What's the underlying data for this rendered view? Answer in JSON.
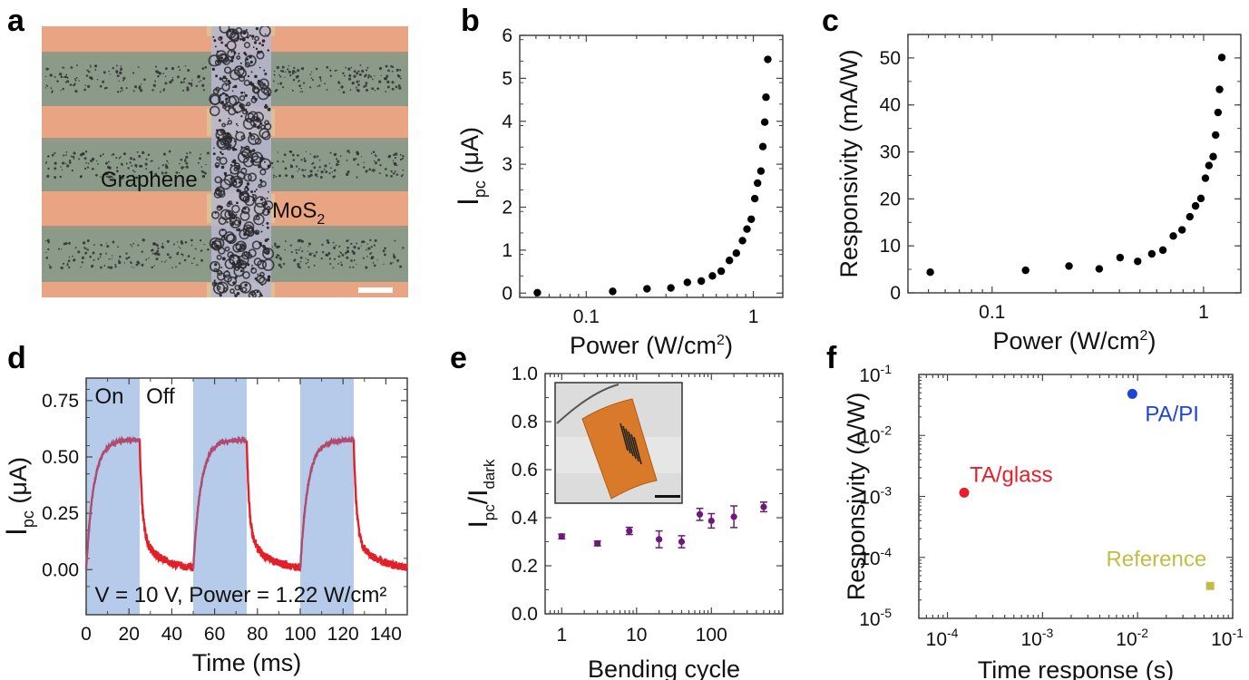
{
  "figure": {
    "panel_labels": [
      "a",
      "b",
      "c",
      "d",
      "e",
      "f"
    ]
  },
  "panel_a": {
    "type": "micrograph",
    "labels": {
      "graphene": "Graphene",
      "mos2_main": "MoS",
      "mos2_sub": "2"
    },
    "colors": {
      "electrode": "#e9a583",
      "graphene": "#8b9a89",
      "mos2": "#b7b6cf",
      "particles": "#2a2a2e",
      "scalebar": "#ffffff"
    }
  },
  "chart_data": [
    {
      "id": "b",
      "type": "scatter",
      "title": "",
      "xlabel": "Power (W/cm",
      "xlabel_sup": "2",
      "xlabel_end": ")",
      "ylabel_main": "I",
      "ylabel_sub": "pc",
      "ylabel_end": " (μA)",
      "xscale": "log",
      "xlim": [
        0.04,
        1.5
      ],
      "ylim": [
        -0.1,
        6
      ],
      "xticks": [
        {
          "v": 0.1,
          "label": "0.1"
        },
        {
          "v": 1,
          "label": "1"
        }
      ],
      "yticks": [
        {
          "v": 0,
          "label": "0"
        },
        {
          "v": 1,
          "label": "1"
        },
        {
          "v": 2,
          "label": "2"
        },
        {
          "v": 3,
          "label": "3"
        },
        {
          "v": 4,
          "label": "4"
        },
        {
          "v": 5,
          "label": "5"
        },
        {
          "v": 6,
          "label": "6"
        }
      ],
      "color": "#000000",
      "x": [
        0.051,
        0.144,
        0.231,
        0.321,
        0.403,
        0.488,
        0.569,
        0.642,
        0.719,
        0.791,
        0.861,
        0.916,
        0.971,
        1.02,
        1.06,
        1.11,
        1.14,
        1.17,
        1.19,
        1.22
      ],
      "y": [
        0.01,
        0.04,
        0.1,
        0.12,
        0.25,
        0.28,
        0.4,
        0.51,
        0.76,
        0.93,
        1.22,
        1.49,
        1.72,
        2.2,
        2.56,
        2.84,
        3.41,
        3.98,
        4.56,
        5.44
      ]
    },
    {
      "id": "c",
      "type": "scatter",
      "title": "",
      "xlabel": "Power (W/cm",
      "xlabel_sup": "2",
      "xlabel_end": ")",
      "ylabel": "Responsivity (mA/W)",
      "xscale": "log",
      "xlim": [
        0.04,
        1.5
      ],
      "ylim": [
        0,
        55
      ],
      "xticks": [
        {
          "v": 0.1,
          "label": "0.1"
        },
        {
          "v": 1,
          "label": "1"
        }
      ],
      "yticks": [
        {
          "v": 0,
          "label": "0"
        },
        {
          "v": 10,
          "label": "10"
        },
        {
          "v": 20,
          "label": "20"
        },
        {
          "v": 30,
          "label": "30"
        },
        {
          "v": 40,
          "label": "40"
        },
        {
          "v": 50,
          "label": "50"
        }
      ],
      "color": "#000000",
      "x": [
        0.051,
        0.144,
        0.231,
        0.321,
        0.403,
        0.488,
        0.569,
        0.642,
        0.719,
        0.791,
        0.861,
        0.916,
        0.971,
        1.02,
        1.06,
        1.11,
        1.14,
        1.17,
        1.19,
        1.22
      ],
      "y": [
        4.4,
        4.8,
        5.7,
        5.1,
        7.5,
        6.7,
        8.3,
        9.1,
        12.1,
        13.4,
        16.2,
        18.5,
        20.1,
        24.4,
        27.1,
        29.0,
        33.6,
        38.4,
        43.3,
        50.1
      ]
    },
    {
      "id": "d",
      "type": "line",
      "title": "",
      "xlabel": "Time (ms)",
      "ylabel_main": "I",
      "ylabel_sub": "pc",
      "ylabel_end": " (μA)",
      "xlim": [
        0,
        150
      ],
      "ylim": [
        -0.2,
        0.85
      ],
      "xticks": [
        {
          "v": 0,
          "label": "0"
        },
        {
          "v": 20,
          "label": "20"
        },
        {
          "v": 40,
          "label": "40"
        },
        {
          "v": 60,
          "label": "60"
        },
        {
          "v": 80,
          "label": "80"
        },
        {
          "v": 100,
          "label": "100"
        },
        {
          "v": 120,
          "label": "120"
        },
        {
          "v": 140,
          "label": "140"
        }
      ],
      "yticks": [
        {
          "v": 0,
          "label": "0.00"
        },
        {
          "v": 0.25,
          "label": "0.25"
        },
        {
          "v": 0.5,
          "label": "0.50"
        },
        {
          "v": 0.75,
          "label": "0.75"
        }
      ],
      "on_intervals": [
        [
          0,
          25
        ],
        [
          50,
          75
        ],
        [
          100,
          125
        ]
      ],
      "on_label": "On",
      "off_label": "Off",
      "annotation": "V = 10 V, Power = 1.22 W/cm²",
      "shade_color": "#b5cbe9",
      "trace_color": "#e3202a",
      "trace_on_color": "#b04a6e",
      "model": {
        "plateau": 0.575,
        "rise_tau_ms": 3.5,
        "decay_fast_amp": 0.42,
        "decay_fast_tau_ms": 1.2,
        "decay_slow_amp": 0.155,
        "decay_slow_tau_ms": 9
      },
      "series": [
        {
          "name": "I_pc",
          "x_sample": [
            0,
            2,
            5,
            10,
            15,
            20,
            25,
            26,
            30,
            35,
            40,
            45,
            50,
            52,
            55,
            60,
            65,
            70,
            75,
            76,
            80,
            85,
            90,
            95,
            100,
            102,
            105,
            110,
            115,
            120,
            125,
            126,
            130,
            135,
            140,
            145,
            150
          ],
          "y_sample": [
            0.0,
            0.25,
            0.44,
            0.53,
            0.56,
            0.57,
            0.575,
            0.28,
            0.14,
            0.09,
            0.05,
            0.01,
            0.01,
            0.25,
            0.44,
            0.53,
            0.56,
            0.57,
            0.575,
            0.28,
            0.14,
            0.08,
            0.04,
            0.01,
            0.01,
            0.25,
            0.44,
            0.53,
            0.56,
            0.575,
            0.575,
            0.28,
            0.14,
            0.08,
            0.04,
            0.02,
            -0.01
          ]
        }
      ]
    },
    {
      "id": "e",
      "type": "scatter",
      "title": "",
      "xlabel": "Bending cycle",
      "ylabel_main": "I",
      "ylabel_sub": "pc",
      "ylabel_mid": "/I",
      "ylabel_sub2": "dark",
      "xscale": "log",
      "xlim": [
        0.6,
        900
      ],
      "ylim": [
        0,
        1.0
      ],
      "xticks": [
        {
          "v": 1,
          "label": "1"
        },
        {
          "v": 10,
          "label": "10"
        },
        {
          "v": 100,
          "label": "100"
        }
      ],
      "yticks": [
        {
          "v": 0,
          "label": "0.0"
        },
        {
          "v": 0.2,
          "label": "0.2"
        },
        {
          "v": 0.4,
          "label": "0.4"
        },
        {
          "v": 0.6,
          "label": "0.6"
        },
        {
          "v": 0.8,
          "label": "0.8"
        },
        {
          "v": 1.0,
          "label": "1.0"
        }
      ],
      "color": "#6b1a78",
      "x": [
        1,
        3,
        8,
        20,
        40,
        70,
        100,
        200,
        500
      ],
      "y": [
        0.322,
        0.293,
        0.345,
        0.31,
        0.3,
        0.414,
        0.387,
        0.404,
        0.445
      ],
      "yerr": [
        0.01,
        0.01,
        0.015,
        0.035,
        0.025,
        0.025,
        0.03,
        0.045,
        0.02
      ],
      "inset": "photo of bent flexible photodetector on glass tube"
    },
    {
      "id": "f",
      "type": "scatter",
      "title": "",
      "xlabel": "Time response (s)",
      "ylabel": "Responsivity (A/W)",
      "xscale": "log",
      "yscale": "log",
      "xlim": [
        5e-05,
        0.1
      ],
      "ylim": [
        1e-05,
        0.1
      ],
      "xticks": [
        {
          "v": 0.0001,
          "base": "10",
          "exp": "-4"
        },
        {
          "v": 0.001,
          "base": "10",
          "exp": "-3"
        },
        {
          "v": 0.01,
          "base": "10",
          "exp": "-2"
        },
        {
          "v": 0.1,
          "base": "10",
          "exp": "-1"
        }
      ],
      "yticks": [
        {
          "v": 1e-05,
          "base": "10",
          "exp": "-5"
        },
        {
          "v": 0.0001,
          "base": "10",
          "exp": "-4"
        },
        {
          "v": 0.001,
          "base": "10",
          "exp": "-3"
        },
        {
          "v": 0.01,
          "base": "10",
          "exp": "-2"
        },
        {
          "v": 0.1,
          "base": "10",
          "exp": "-1"
        }
      ],
      "points": [
        {
          "name": "TA/glass",
          "x": 0.00015,
          "y": 0.00115,
          "color": "#e5202a",
          "marker": "circle",
          "label_pos": "above-right"
        },
        {
          "name": "PA/PI",
          "x": 0.0088,
          "y": 0.048,
          "color": "#1f45d8",
          "marker": "circle",
          "label_pos": "below-right"
        },
        {
          "name": "Reference",
          "x": 0.058,
          "y": 3.4e-05,
          "color": "#c2bd42",
          "marker": "square",
          "label_pos": "above-left"
        }
      ]
    }
  ]
}
